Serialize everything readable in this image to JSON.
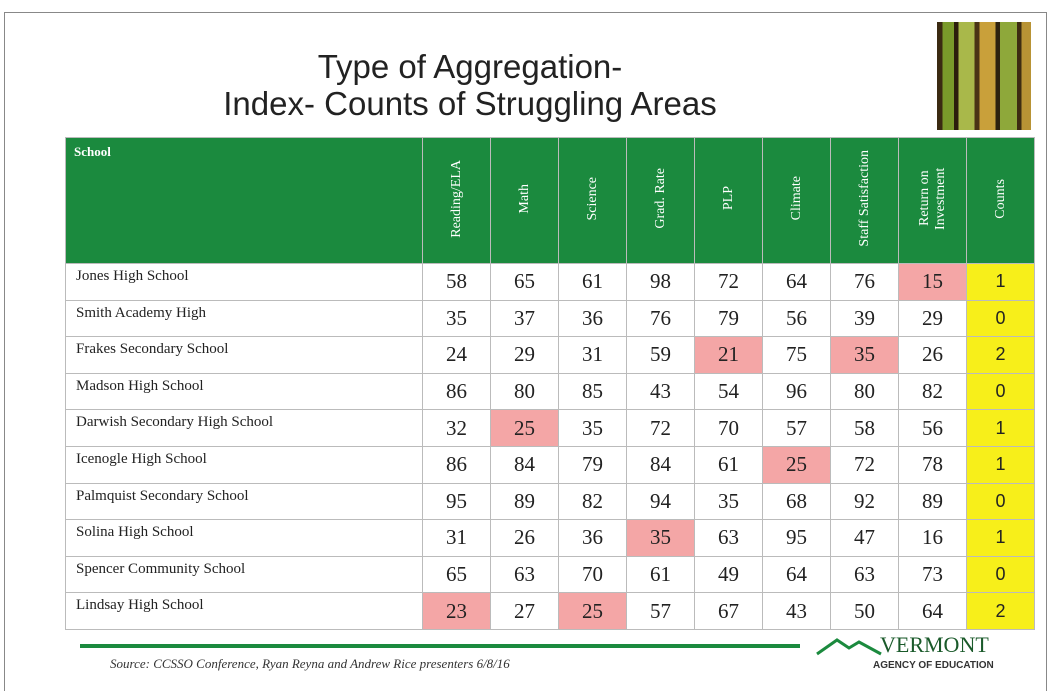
{
  "title": {
    "line1": "Type of Aggregation-",
    "line2": "Index- Counts of Struggling Areas"
  },
  "table": {
    "header": {
      "school": "School",
      "columns": [
        "Reading/ELA",
        "Math",
        "Science",
        "Grad. Rate",
        "PLP",
        "Climate",
        "Staff Satisfaction",
        "Return on Investment"
      ],
      "count": "Counts"
    },
    "header_color": "#1b8a3e",
    "highlight_color": "#f4a6a6",
    "count_color": "#f7ef1a",
    "rows": [
      {
        "school": "Jones High School",
        "values": [
          58,
          65,
          61,
          98,
          72,
          64,
          76,
          15
        ],
        "low": [
          false,
          false,
          false,
          false,
          false,
          false,
          false,
          true
        ],
        "count": 1
      },
      {
        "school": "Smith Academy High",
        "values": [
          35,
          37,
          36,
          76,
          79,
          56,
          39,
          29
        ],
        "low": [
          false,
          false,
          false,
          false,
          false,
          false,
          false,
          false
        ],
        "count": 0
      },
      {
        "school": "Frakes Secondary School",
        "values": [
          24,
          29,
          31,
          59,
          21,
          75,
          35,
          26
        ],
        "low": [
          false,
          false,
          false,
          false,
          true,
          false,
          true,
          false
        ],
        "count": 2
      },
      {
        "school": "Madson High School",
        "values": [
          86,
          80,
          85,
          43,
          54,
          96,
          80,
          82
        ],
        "low": [
          false,
          false,
          false,
          false,
          false,
          false,
          false,
          false
        ],
        "count": 0
      },
      {
        "school": "Darwish Secondary High School",
        "values": [
          32,
          25,
          35,
          72,
          70,
          57,
          58,
          56
        ],
        "low": [
          false,
          true,
          false,
          false,
          false,
          false,
          false,
          false
        ],
        "count": 1
      },
      {
        "school": "Icenogle High School",
        "values": [
          86,
          84,
          79,
          84,
          61,
          25,
          72,
          78
        ],
        "low": [
          false,
          false,
          false,
          false,
          false,
          true,
          false,
          false
        ],
        "count": 1
      },
      {
        "school": "Palmquist Secondary School",
        "values": [
          95,
          89,
          82,
          94,
          35,
          68,
          92,
          89
        ],
        "low": [
          false,
          false,
          false,
          false,
          false,
          false,
          false,
          false
        ],
        "count": 0
      },
      {
        "school": "Solina High School",
        "values": [
          31,
          26,
          36,
          35,
          63,
          95,
          47,
          16
        ],
        "low": [
          false,
          false,
          false,
          true,
          false,
          false,
          false,
          false
        ],
        "count": 1
      },
      {
        "school": "Spencer Community School",
        "values": [
          65,
          63,
          70,
          61,
          49,
          64,
          63,
          73
        ],
        "low": [
          false,
          false,
          false,
          false,
          false,
          false,
          false,
          false
        ],
        "count": 0
      },
      {
        "school": "Lindsay High School",
        "values": [
          23,
          27,
          25,
          57,
          67,
          43,
          50,
          64
        ],
        "low": [
          true,
          false,
          true,
          false,
          false,
          false,
          false,
          false
        ],
        "count": 2
      }
    ]
  },
  "footer": {
    "source": "Source:  CCSSO Conference, Ryan Reyna and Andrew Rice presenters 6/8/16",
    "logo_name": "VERMONT",
    "logo_sub": "AGENCY OF EDUCATION"
  }
}
